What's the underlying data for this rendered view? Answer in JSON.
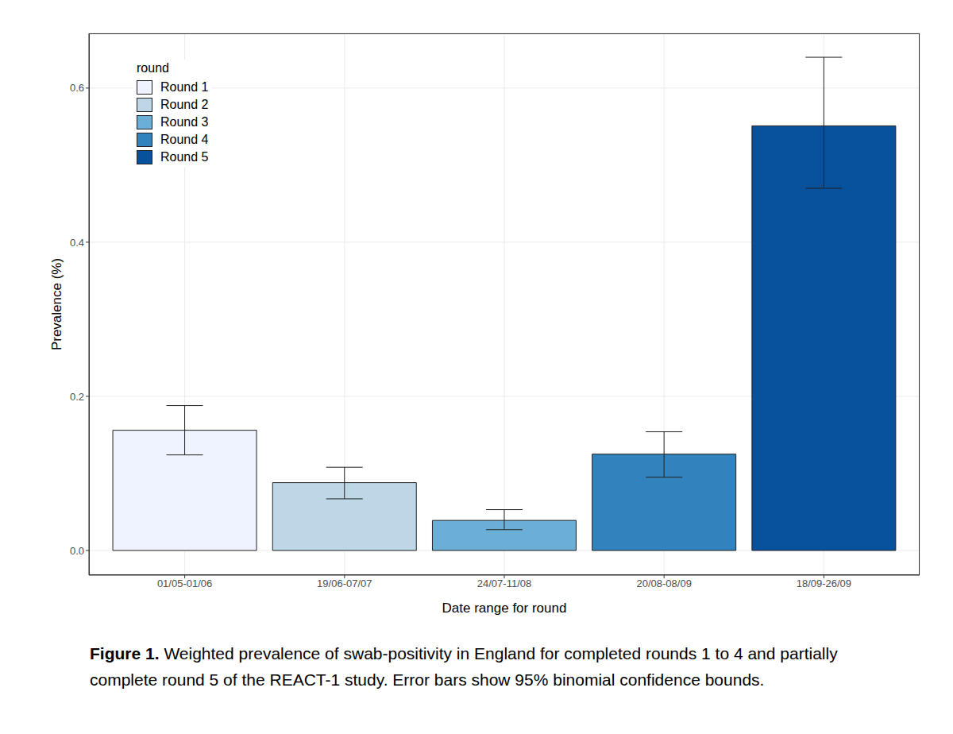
{
  "chart_data": {
    "type": "bar",
    "categories": [
      "01/05-01/06",
      "19/06-07/07",
      "24/07-11/08",
      "20/08-08/09",
      "18/09-26/09"
    ],
    "values": [
      0.156,
      0.088,
      0.039,
      0.125,
      0.551
    ],
    "error_low": [
      0.124,
      0.067,
      0.027,
      0.095,
      0.47
    ],
    "error_high": [
      0.188,
      0.108,
      0.053,
      0.154,
      0.64
    ],
    "colors": [
      "#eff3ff",
      "#bdd7e7",
      "#6baed6",
      "#3182bd",
      "#08519c"
    ],
    "legend_title": "round",
    "legend_entries": [
      "Round 1",
      "Round 2",
      "Round 3",
      "Round 4",
      "Round 5"
    ],
    "legend": "upper left",
    "x_label": "Date range for round",
    "y_label": "Prevalence (%)",
    "ylim": [
      -0.032,
      0.671
    ],
    "yticks": [
      {
        "value": 0,
        "label": "0.0"
      },
      0.2,
      0.4,
      0.6
    ],
    "grid": true,
    "caption_label": "Figure 1.",
    "caption": "Weighted prevalence of swab-positivity in England for completed rounds 1 to 4 and partially complete round 5 of the REACT-1 study. Error bars show 95% binomial confidence bounds."
  }
}
